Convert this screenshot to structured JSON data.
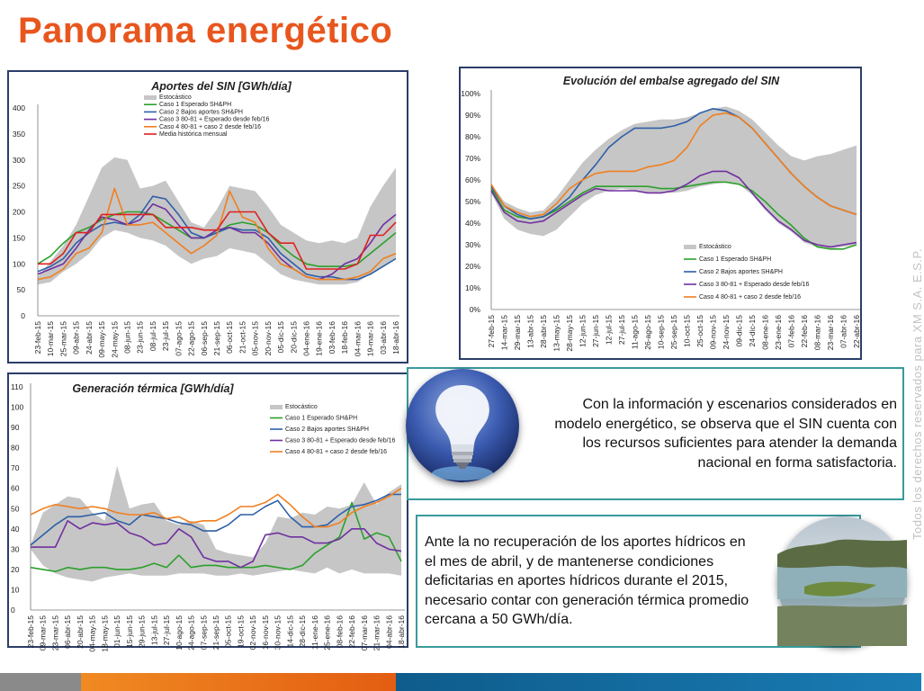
{
  "page": {
    "title": "Panorama energético",
    "text1": "Con la información y escenarios considerados en modelo energético, se observa que el SIN cuenta con  los recursos suficientes para atender la demanda nacional en forma satisfactoria.",
    "text2": "Ante la no recuperación de los aportes hídricos en el mes de abril, y de mantenerse condiciones deficitarias en aportes hídricos  durante el 2015, necesario contar con generación térmica promedio cercana a 50 GWh/día.",
    "vertical_text": "Todos los derechos reservados para XM S.A. E.S.P.",
    "colors": {
      "title": "#e8561e",
      "border": "#2b3d68",
      "text_box_border": "#3a9a9c",
      "bottom_bar": [
        "#8a8a8a",
        "#f07f1f",
        "#e35d12",
        "#0e5c8c"
      ]
    }
  },
  "chart_data": [
    {
      "type": "line",
      "title": "Aportes del SIN [GWh/día]",
      "xlabel": "",
      "ylabel": "",
      "ylim": [
        0,
        400
      ],
      "yticks": [
        0,
        50,
        100,
        150,
        200,
        250,
        300,
        350,
        400
      ],
      "grid": false,
      "legend": "top-left",
      "categories": [
        "23-feb-15",
        "10-mar-15",
        "25-mar-15",
        "09-abr-15",
        "24-abr-15",
        "09-may-15",
        "24-may-15",
        "08-jun-15",
        "23-jun-15",
        "08-jul-15",
        "23-jul-15",
        "07-ago-15",
        "22-ago-15",
        "06-sep-15",
        "21-sep-15",
        "06-oct-15",
        "21-oct-15",
        "05-nov-15",
        "20-nov-15",
        "05-dic-15",
        "20-dic-15",
        "04-ene-16",
        "19-ene-16",
        "03-feb-16",
        "18-feb-16",
        "04-mar-16",
        "19-mar-16",
        "03-abr-16",
        "18-abr-16"
      ],
      "band": {
        "name": "Estocástico",
        "color": "#c6c6c6",
        "upper": [
          75,
          105,
          135,
          175,
          230,
          285,
          305,
          300,
          245,
          250,
          260,
          220,
          180,
          170,
          205,
          250,
          245,
          240,
          210,
          175,
          160,
          145,
          140,
          145,
          140,
          150,
          210,
          250,
          285
        ],
        "lower": [
          60,
          65,
          85,
          100,
          120,
          150,
          165,
          160,
          150,
          145,
          135,
          115,
          100,
          110,
          115,
          130,
          125,
          120,
          100,
          80,
          70,
          65,
          60,
          60,
          60,
          65,
          80,
          95,
          110
        ]
      },
      "series": [
        {
          "name": "Caso 1 Esperado SH&PH",
          "color": "#2ca02c",
          "values": [
            100,
            115,
            140,
            160,
            170,
            185,
            195,
            200,
            200,
            195,
            180,
            165,
            150,
            150,
            160,
            175,
            180,
            175,
            160,
            135,
            115,
            100,
            95,
            95,
            95,
            100,
            120,
            140,
            160
          ]
        },
        {
          "name": "Caso 2  Bajos aportes SH&PH",
          "color": "#2e5fa8",
          "values": [
            85,
            95,
            110,
            140,
            160,
            175,
            180,
            175,
            195,
            230,
            225,
            195,
            160,
            150,
            160,
            170,
            165,
            165,
            150,
            120,
            100,
            80,
            75,
            75,
            70,
            70,
            80,
            95,
            110
          ]
        },
        {
          "name": "Caso 3 80-81 + Esperado desde feb/16",
          "color": "#7030a0",
          "values": [
            80,
            90,
            100,
            130,
            165,
            190,
            185,
            175,
            185,
            215,
            205,
            175,
            150,
            150,
            165,
            170,
            160,
            160,
            140,
            110,
            90,
            75,
            70,
            80,
            100,
            110,
            140,
            175,
            195
          ]
        },
        {
          "name": "Caso 4 80-81 + caso 2 desde feb/16",
          "color": "#f07f1f",
          "values": [
            70,
            75,
            90,
            120,
            130,
            160,
            245,
            175,
            175,
            180,
            160,
            140,
            120,
            135,
            155,
            240,
            190,
            180,
            130,
            100,
            90,
            75,
            70,
            70,
            70,
            75,
            85,
            110,
            120
          ]
        },
        {
          "name": "Media histórica mensual",
          "color": "#e02020",
          "values": [
            100,
            100,
            120,
            160,
            160,
            195,
            195,
            195,
            195,
            195,
            170,
            170,
            170,
            165,
            165,
            200,
            200,
            200,
            160,
            140,
            140,
            90,
            90,
            90,
            90,
            100,
            155,
            155,
            180
          ]
        }
      ]
    },
    {
      "type": "line",
      "title": "Evolución del embalse agregado del SIN",
      "xlabel": "",
      "ylabel": "",
      "ylim": [
        0,
        100
      ],
      "yticks": [
        "0%",
        "10%",
        "20%",
        "30%",
        "40%",
        "50%",
        "60%",
        "70%",
        "80%",
        "90%",
        "100%"
      ],
      "grid": false,
      "legend": "bottom-left",
      "categories": [
        "27-feb-15",
        "14-mar-15",
        "29-mar-15",
        "13-abr-15",
        "28-abr-15",
        "13-may-15",
        "28-may-15",
        "12-jun-15",
        "27-jun-15",
        "12-jul-15",
        "27-jul-15",
        "11-ago-15",
        "26-ago-15",
        "10-sep-15",
        "25-sep-15",
        "10-oct-15",
        "25-oct-15",
        "09-nov-15",
        "24-nov-15",
        "09-dic-15",
        "24-dic-15",
        "08-ene-16",
        "23-ene-16",
        "07-feb-16",
        "22-feb-16",
        "08-mar-16",
        "23-mar-16",
        "07-abr-16",
        "22-abr-16"
      ],
      "band": {
        "name": "Estocástico",
        "color": "#c6c6c6",
        "upper": [
          58,
          50,
          47,
          45,
          46,
          52,
          60,
          68,
          74,
          79,
          83,
          86,
          87,
          88,
          88,
          89,
          91,
          93,
          94,
          92,
          88,
          82,
          76,
          71,
          69,
          71,
          72,
          74,
          76
        ],
        "lower": [
          54,
          42,
          37,
          35,
          34,
          37,
          43,
          49,
          53,
          55,
          56,
          55,
          54,
          54,
          54,
          55,
          57,
          58,
          59,
          58,
          53,
          46,
          40,
          36,
          31,
          29,
          28,
          29,
          30
        ]
      },
      "series": [
        {
          "name": "Caso 1 Esperado SH&PH",
          "color": "#2ca02c",
          "values": [
            56,
            46,
            43,
            42,
            43,
            46,
            50,
            54,
            57,
            57,
            57,
            57,
            57,
            56,
            56,
            57,
            58,
            59,
            59,
            58,
            55,
            50,
            44,
            39,
            33,
            29,
            28,
            28,
            30
          ]
        },
        {
          "name": "Caso 2  Bajos aportes SH&PH",
          "color": "#2e5fa8",
          "values": [
            57,
            48,
            44,
            42,
            43,
            47,
            52,
            60,
            67,
            75,
            80,
            84,
            84,
            84,
            85,
            87,
            91,
            93,
            92,
            89,
            84,
            77,
            70,
            63,
            57,
            52,
            48,
            46,
            44
          ]
        },
        {
          "name": "Caso 3 80-81 + Esperado desde feb/16",
          "color": "#7030a0",
          "values": [
            55,
            45,
            41,
            40,
            41,
            45,
            49,
            53,
            56,
            55,
            55,
            55,
            54,
            54,
            55,
            58,
            62,
            64,
            64,
            61,
            54,
            47,
            41,
            37,
            32,
            30,
            29,
            30,
            31
          ]
        },
        {
          "name": "Caso 4 80-81 + caso 2 desde feb/16",
          "color": "#f07f1f",
          "values": [
            58,
            48,
            45,
            43,
            44,
            49,
            56,
            60,
            63,
            64,
            64,
            64,
            66,
            67,
            69,
            75,
            85,
            90,
            91,
            89,
            84,
            77,
            70,
            63,
            57,
            52,
            48,
            46,
            44
          ]
        }
      ]
    },
    {
      "type": "line",
      "title": "Generación térmica [GWh/día]",
      "xlabel": "",
      "ylabel": "",
      "ylim": [
        0,
        110
      ],
      "yticks": [
        0,
        10,
        20,
        30,
        40,
        50,
        60,
        70,
        80,
        90,
        100,
        110
      ],
      "grid": false,
      "legend": "top-left",
      "categories": [
        "23-feb-15",
        "09-mar-15",
        "23-mar-15",
        "06-abr-15",
        "20-abr-15",
        "04-may-15",
        "18-may-15",
        "01-jun-15",
        "15-jun-15",
        "29-jun-15",
        "13-jul-15",
        "27-jul-15",
        "10-ago-15",
        "24-ago-15",
        "07-sep-15",
        "21-sep-15",
        "05-oct-15",
        "19-oct-15",
        "02-nov-15",
        "16-nov-15",
        "30-nov-15",
        "14-dic-15",
        "28-dic-15",
        "11-ene-16",
        "25-ene-16",
        "08-feb-16",
        "22-feb-16",
        "07-mar-16",
        "21-mar-16",
        "04-abr-16",
        "18-abr-16"
      ],
      "band": {
        "name": "Estocástico",
        "color": "#c6c6c6",
        "upper": [
          32,
          48,
          52,
          56,
          55,
          48,
          44,
          71,
          50,
          52,
          53,
          44,
          42,
          44,
          42,
          30,
          28,
          27,
          26,
          33,
          46,
          45,
          48,
          47,
          51,
          50,
          52,
          63,
          52,
          58,
          62
        ],
        "lower": [
          30,
          22,
          18,
          16,
          15,
          14,
          16,
          17,
          18,
          17,
          17,
          17,
          18,
          18,
          18,
          17,
          17,
          18,
          17,
          18,
          19,
          20,
          19,
          18,
          21,
          18,
          20,
          18,
          18,
          18,
          17
        ]
      },
      "series": [
        {
          "name": "Caso 1 Esperado SH&PH",
          "color": "#2ca02c",
          "values": [
            21,
            20,
            19,
            21,
            20,
            21,
            21,
            20,
            20,
            21,
            23,
            21,
            27,
            21,
            22,
            22,
            21,
            21,
            21,
            22,
            21,
            20,
            22,
            28,
            32,
            36,
            53,
            35,
            38,
            36,
            24
          ]
        },
        {
          "name": "Caso 2  Bajos aportes SH&PH",
          "color": "#2e5fa8",
          "values": [
            32,
            37,
            42,
            46,
            46,
            47,
            48,
            44,
            42,
            47,
            46,
            45,
            43,
            42,
            39,
            39,
            42,
            47,
            47,
            51,
            54,
            46,
            41,
            41,
            42,
            47,
            51,
            52,
            54,
            57,
            57
          ]
        },
        {
          "name": "Caso 3 80-81 + Esperado desde feb/16",
          "color": "#7030a0",
          "values": [
            31,
            31,
            31,
            44,
            40,
            43,
            42,
            43,
            38,
            36,
            32,
            33,
            40,
            36,
            26,
            24,
            24,
            21,
            24,
            37,
            38,
            36,
            36,
            33,
            33,
            35,
            40,
            40,
            33,
            30,
            29
          ]
        },
        {
          "name": "Caso 4 80-81 + caso 2 desde feb/16",
          "color": "#f07f1f",
          "values": [
            47,
            50,
            52,
            51,
            50,
            51,
            50,
            48,
            47,
            47,
            48,
            45,
            46,
            43,
            44,
            44,
            47,
            51,
            51,
            53,
            57,
            52,
            46,
            41,
            41,
            43,
            48,
            51,
            53,
            56,
            60
          ]
        }
      ]
    }
  ]
}
